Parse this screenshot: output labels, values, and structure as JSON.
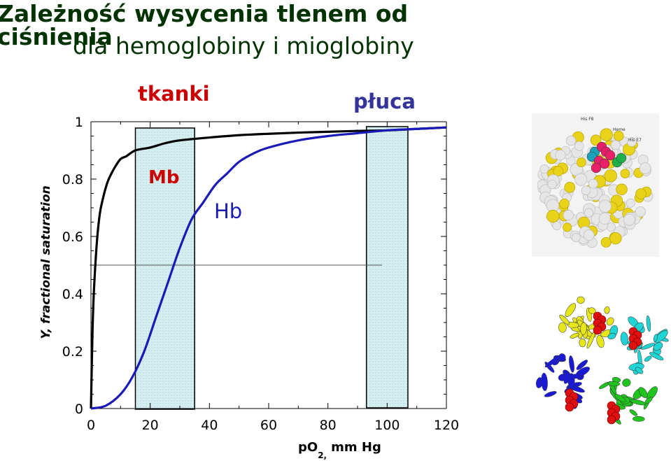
{
  "page": {
    "title_line1": "Zależność wysycenia tlenem od ciśnienia",
    "title_line2": "dla hemoglobiny i mioglobiny"
  },
  "chart_data": {
    "type": "line",
    "xlabel": "pO2, mm Hg",
    "xlabel_main": "pO",
    "xlabel_sub": "2,",
    "xlabel_rest": "mm Hg",
    "ylabel": "Y, fractional saturation",
    "xlim": [
      0,
      120
    ],
    "ylim": [
      0,
      1
    ],
    "x_ticks": [
      "0",
      "20",
      "40",
      "60",
      "80",
      "100",
      "120"
    ],
    "y_ticks": [
      "0",
      "0.2",
      "0.4",
      "0.6",
      "0.8",
      "1"
    ],
    "reference_line_y": 0.5,
    "regions": [
      {
        "label": "tkanki",
        "x": [
          15,
          35
        ],
        "label_color": "#cc0000"
      },
      {
        "label": "płuca",
        "x": [
          93,
          107
        ],
        "label_color": "#333399"
      }
    ],
    "series": [
      {
        "name": "Mb",
        "color": "#000000",
        "label_color": "#cc0000",
        "x": [
          0,
          0.5,
          1,
          2,
          3,
          4,
          5,
          6,
          8,
          10,
          12,
          15,
          20,
          25,
          30,
          40,
          50,
          60,
          70,
          80,
          90,
          100,
          110,
          120
        ],
        "y": [
          0,
          0.26,
          0.41,
          0.58,
          0.68,
          0.73,
          0.77,
          0.8,
          0.84,
          0.87,
          0.88,
          0.9,
          0.91,
          0.925,
          0.935,
          0.945,
          0.953,
          0.958,
          0.962,
          0.965,
          0.968,
          0.97,
          0.975,
          0.98
        ]
      },
      {
        "name": "Hb",
        "color": "#1a1ab8",
        "label_color": "#1a1ab8",
        "x": [
          0,
          5,
          10,
          14,
          18,
          22,
          26,
          30,
          34,
          38,
          42,
          46,
          50,
          55,
          60,
          70,
          80,
          90,
          100,
          110,
          120
        ],
        "y": [
          0,
          0.01,
          0.05,
          0.11,
          0.2,
          0.32,
          0.44,
          0.56,
          0.66,
          0.72,
          0.78,
          0.82,
          0.86,
          0.89,
          0.91,
          0.935,
          0.95,
          0.96,
          0.97,
          0.975,
          0.98
        ]
      }
    ],
    "colors": {
      "region_fill": "#d5eef0",
      "axis": "#000000",
      "title": "#003300"
    }
  },
  "images": [
    {
      "name": "myoglobin-structure-image",
      "labels": [
        "His F8",
        "Heme",
        "His E7"
      ]
    },
    {
      "name": "hemoglobin-structure-image"
    }
  ]
}
